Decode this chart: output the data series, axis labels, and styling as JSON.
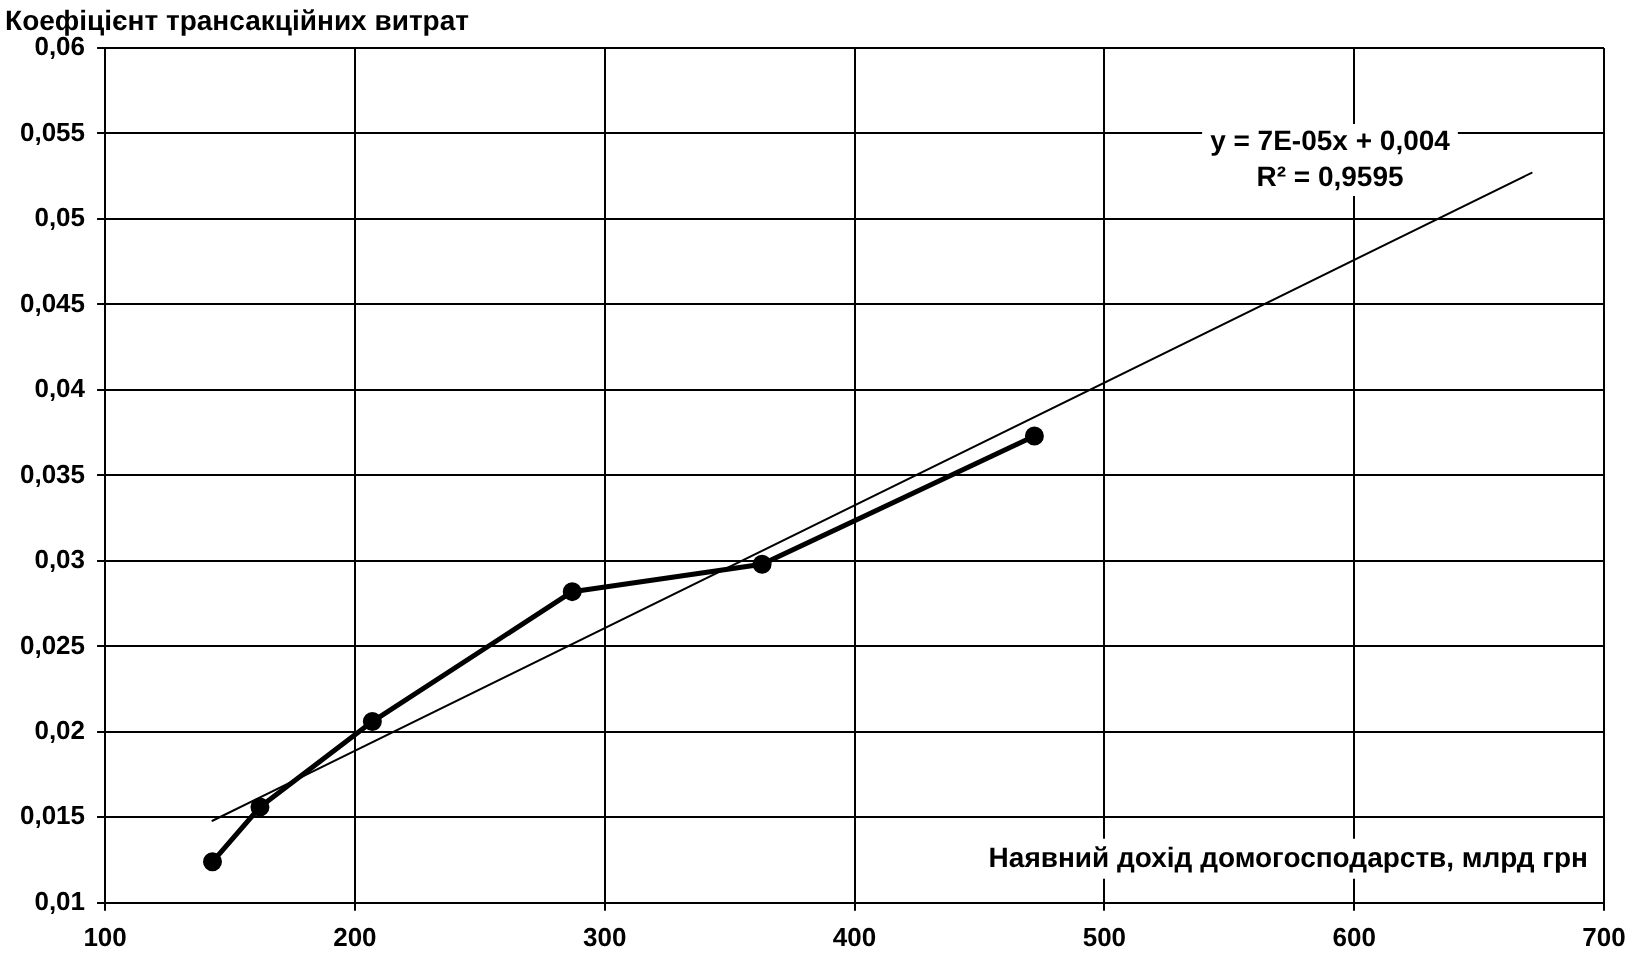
{
  "chart_data": {
    "type": "line",
    "xlabel": "Наявний дохід домогосподарств, млрд грн",
    "ylabel": "Коефіцієнт трансакційних витрат",
    "series": [
      {
        "color": "#000000",
        "x": [
          143,
          162,
          207,
          287,
          363,
          472
        ],
        "values": [
          0.0124,
          0.0156,
          0.0206,
          0.0282,
          0.0298,
          0.0373
        ],
        "marker": "circle"
      },
      {
        "type": "line",
        "color": "#000000",
        "x": [
          143,
          671
        ],
        "values": [
          0.0148,
          0.0527
        ],
        "marker": "none"
      }
    ],
    "annotations": [
      "y = 7E-05x + 0,004",
      "R² = 0,9595"
    ],
    "xlim": [
      100,
      700
    ],
    "xticks": [
      100,
      200,
      300,
      400,
      500,
      600,
      700
    ],
    "ylim": [
      0.01,
      0.06
    ],
    "yticks": [
      {
        "value": 0.01,
        "label": "0,01"
      },
      {
        "value": 0.015,
        "label": "0,015"
      },
      {
        "value": 0.02,
        "label": "0,02"
      },
      {
        "value": 0.025,
        "label": "0,025"
      },
      {
        "value": 0.03,
        "label": "0,03"
      },
      {
        "value": 0.035,
        "label": "0,035"
      },
      {
        "value": 0.04,
        "label": "0,04"
      },
      {
        "value": 0.045,
        "label": "0,045"
      },
      {
        "value": 0.05,
        "label": "0,05"
      },
      {
        "value": 0.055,
        "label": "0,055"
      },
      {
        "value": 0.06,
        "label": "0,06"
      }
    ],
    "grid": true,
    "legend": false
  }
}
